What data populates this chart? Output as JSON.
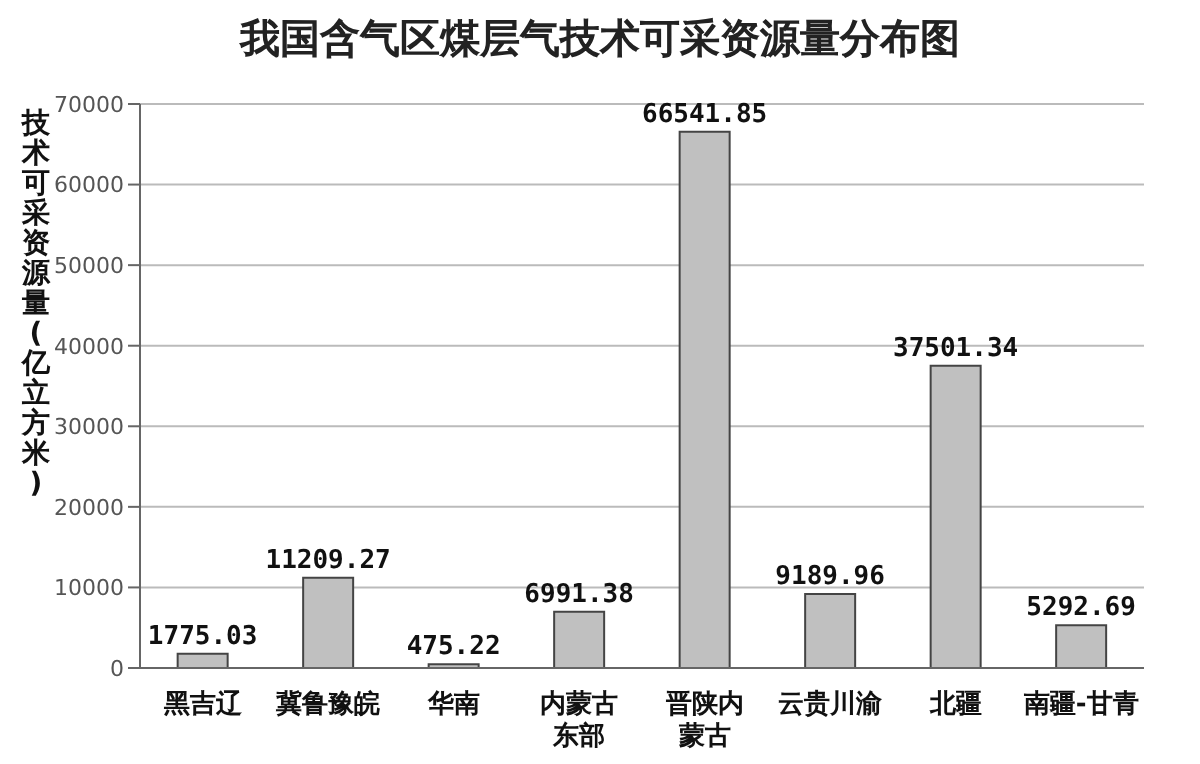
{
  "chart_data": {
    "type": "bar",
    "title": "我国含气区煤层气技术可采资源量分布图",
    "ylabel": "技术可采资源量(亿立方米)",
    "categories": [
      "黑吉辽",
      "冀鲁豫皖",
      "华南",
      "内蒙古东部",
      "晋陕内蒙古",
      "云贵川渝",
      "北疆",
      "南疆-甘青"
    ],
    "values": [
      1775.03,
      11209.27,
      475.22,
      6991.38,
      66541.85,
      9189.96,
      37501.34,
      5292.69
    ],
    "color": "#c0c0c0",
    "ylim": [
      0,
      70000
    ],
    "yticks": [
      0,
      10000,
      20000,
      30000,
      40000,
      50000,
      60000,
      70000
    ],
    "grid": "y",
    "data_labels": true
  }
}
